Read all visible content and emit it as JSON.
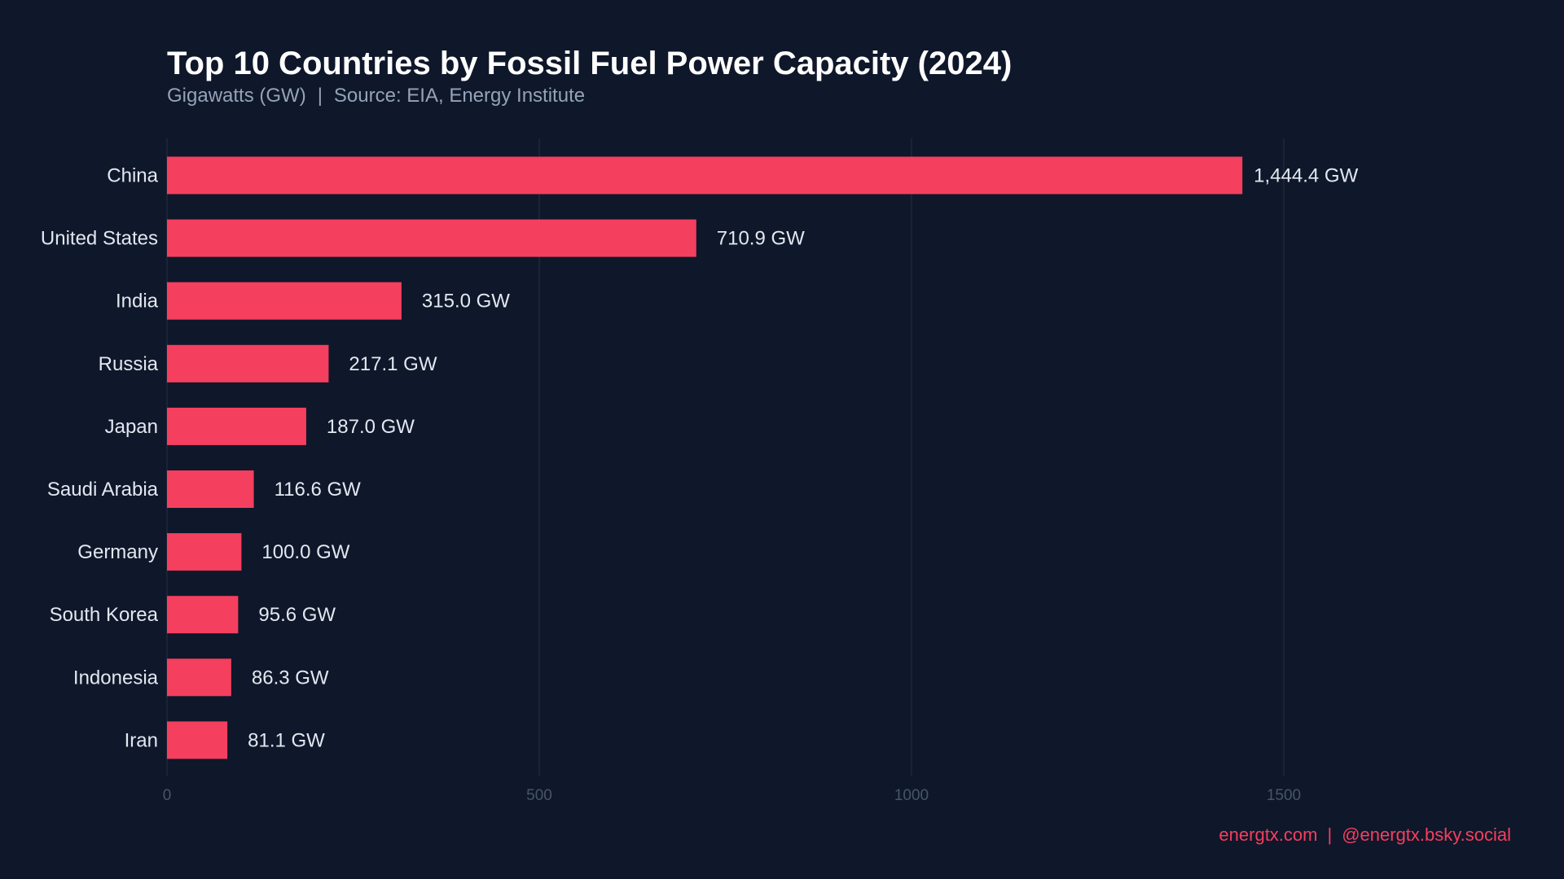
{
  "chart_data": {
    "type": "bar",
    "orientation": "horizontal",
    "title": "Top 10 Countries by Fossil Fuel Power Capacity (2024)",
    "subtitle_unit": "Gigawatts (GW)",
    "subtitle_source": "Source: EIA, Energy Institute",
    "categories": [
      "China",
      "United States",
      "India",
      "Russia",
      "Japan",
      "Saudi Arabia",
      "Germany",
      "South Korea",
      "Indonesia",
      "Iran"
    ],
    "values": [
      1444.4,
      710.9,
      315.0,
      217.1,
      187.0,
      116.6,
      100.0,
      95.6,
      86.3,
      81.1
    ],
    "data_labels": [
      "1,444.4 GW",
      "710.9 GW",
      "315.0 GW",
      "217.1 GW",
      "187.0 GW",
      "116.6 GW",
      "100.0 GW",
      "95.6 GW",
      "86.3 GW",
      "81.1 GW"
    ],
    "xticks": [
      0,
      500,
      1000,
      1500
    ],
    "xlim": [
      0,
      1800
    ],
    "xlabel": "",
    "ylabel": "",
    "grid": "vertical",
    "bar_color": "#f43f5e",
    "background_color": "#0f172a"
  },
  "footer": {
    "site": "energtx.com",
    "separator": "|",
    "social": "@energtx.bsky.social"
  },
  "subtitle_separator": "|"
}
